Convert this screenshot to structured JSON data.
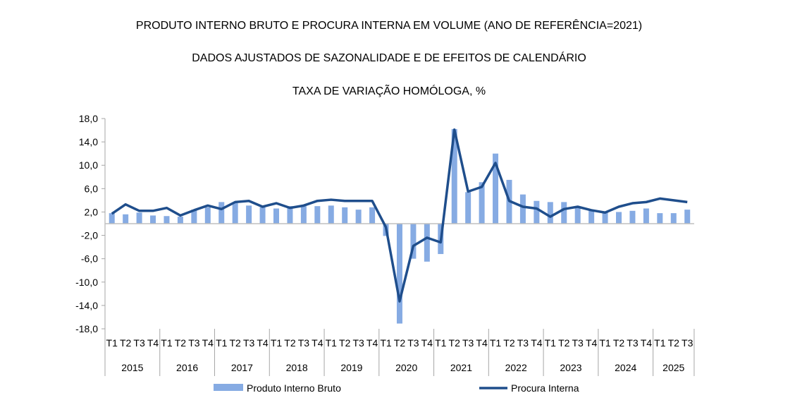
{
  "chart_data": {
    "type": "bar+line",
    "title": "PRODUTO INTERNO BRUTO E PROCURA INTERNA EM VOLUME (ANO DE REFERÊNCIA=2021)",
    "subtitle": "DADOS AJUSTADOS DE SAZONALIDADE E DE EFEITOS DE CALENDÁRIO",
    "subtitle2": "TAXA DE VARIAÇÃO HOMÓLOGA, %",
    "ylim": [
      -18,
      18
    ],
    "yticks": [
      "18,0",
      "14,0",
      "10,0",
      "6,0",
      "2,0",
      "-2,0",
      "-6,0",
      "-10,0",
      "-14,0",
      "-18,0"
    ],
    "ytick_values": [
      18,
      14,
      10,
      6,
      2,
      -2,
      -6,
      -10,
      -14,
      -18
    ],
    "years": [
      {
        "label": "2015",
        "quarters": [
          "T1",
          "T2",
          "T3",
          "T4"
        ]
      },
      {
        "label": "2016",
        "quarters": [
          "T1",
          "T2",
          "T3",
          "T4"
        ]
      },
      {
        "label": "2017",
        "quarters": [
          "T1",
          "T2",
          "T3",
          "T4"
        ]
      },
      {
        "label": "2018",
        "quarters": [
          "T1",
          "T2",
          "T3",
          "T4"
        ]
      },
      {
        "label": "2019",
        "quarters": [
          "T1",
          "T2",
          "T3",
          "T4"
        ]
      },
      {
        "label": "2020",
        "quarters": [
          "T1",
          "T2",
          "T3",
          "T4"
        ]
      },
      {
        "label": "2021",
        "quarters": [
          "T1",
          "T2",
          "T3",
          "T4"
        ]
      },
      {
        "label": "2022",
        "quarters": [
          "T1",
          "T2",
          "T3",
          "T4"
        ]
      },
      {
        "label": "2023",
        "quarters": [
          "T1",
          "T2",
          "T3",
          "T4"
        ]
      },
      {
        "label": "2024",
        "quarters": [
          "T1",
          "T2",
          "T3",
          "T4"
        ]
      },
      {
        "label": "2025",
        "quarters": [
          "T1",
          "T2",
          "T3"
        ]
      }
    ],
    "grid": false,
    "legend_placement": "bottom",
    "series": [
      {
        "name": "Produto Interno Bruto",
        "type": "bar",
        "color": "#86abe3",
        "values": [
          1.8,
          1.6,
          1.9,
          1.4,
          1.3,
          1.2,
          2.4,
          2.8,
          3.7,
          3.5,
          3.1,
          2.8,
          2.6,
          3.0,
          3.0,
          3.0,
          3.1,
          2.8,
          2.4,
          2.8,
          -2.1,
          -17.1,
          -6.0,
          -6.5,
          -5.2,
          16.2,
          5.4,
          7.1,
          12.0,
          7.5,
          5.0,
          3.9,
          3.7,
          3.7,
          2.8,
          2.2,
          2.0,
          2.0,
          2.2,
          2.6,
          1.8,
          1.8,
          2.4
        ]
      },
      {
        "name": "Procura Interna",
        "type": "line",
        "color": "#1f4e8c",
        "values": [
          1.7,
          3.3,
          2.2,
          2.2,
          2.7,
          1.4,
          2.3,
          3.1,
          2.5,
          3.7,
          3.9,
          2.9,
          3.5,
          2.7,
          3.1,
          3.9,
          4.1,
          3.9,
          3.9,
          3.9,
          -0.6,
          -13.3,
          -3.8,
          -2.4,
          -3.2,
          16.1,
          5.5,
          6.3,
          10.4,
          3.9,
          2.9,
          2.6,
          1.2,
          2.5,
          2.9,
          2.3,
          1.9,
          2.9,
          3.5,
          3.7,
          4.3,
          4.0,
          3.7
        ]
      }
    ]
  }
}
